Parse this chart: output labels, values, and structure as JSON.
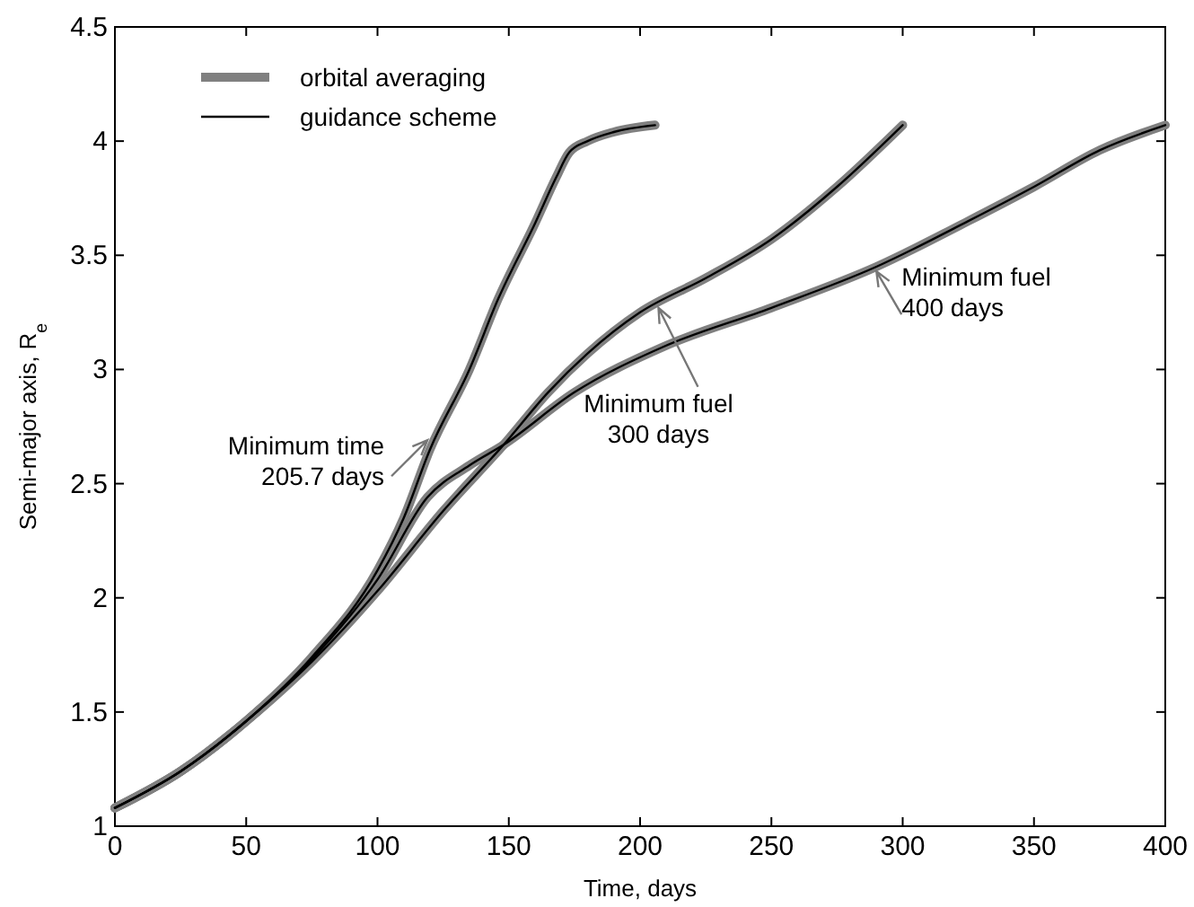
{
  "chart_data": {
    "type": "line",
    "xlabel": "Time, days",
    "ylabel": "Semi-major axis, R$_{e}$",
    "xlim": [
      0,
      400
    ],
    "ylim": [
      1,
      4.5
    ],
    "xticks": [
      0,
      50,
      100,
      150,
      200,
      250,
      300,
      350,
      400
    ],
    "yticks": [
      1,
      1.5,
      2,
      2.5,
      3,
      3.5,
      4,
      4.5
    ],
    "grid": false,
    "legend": "top left",
    "marker": "none",
    "line_style": "solid",
    "series": [
      {
        "name": "orbital averaging",
        "color": "#808080",
        "x": [
          0,
          25,
          50,
          75,
          100,
          110,
          120,
          135,
          146,
          160,
          168,
          173,
          180,
          190,
          205.7
        ],
        "values": [
          1.08,
          1.24,
          1.46,
          1.74,
          2.12,
          2.35,
          2.65,
          3.0,
          3.31,
          3.64,
          3.84,
          3.95,
          4.0,
          4.04,
          4.07
        ]
      },
      {
        "color": "#808080",
        "x": [
          0,
          25,
          50,
          75,
          100,
          125,
          148,
          165,
          180,
          200,
          225,
          250,
          275,
          300
        ],
        "values": [
          1.08,
          1.24,
          1.46,
          1.72,
          2.03,
          2.38,
          2.67,
          2.9,
          3.07,
          3.25,
          3.4,
          3.57,
          3.8,
          4.07
        ]
      },
      {
        "color": "#808080",
        "x": [
          0,
          25,
          50,
          75,
          100,
          119,
          135,
          148,
          175,
          209,
          250,
          290,
          325,
          350,
          375,
          400
        ],
        "values": [
          1.08,
          1.24,
          1.46,
          1.73,
          2.08,
          2.44,
          2.58,
          2.67,
          2.9,
          3.1,
          3.27,
          3.45,
          3.65,
          3.8,
          3.96,
          4.07
        ]
      },
      {
        "name": "guidance scheme",
        "color": "#000000",
        "x": [
          0,
          25,
          50,
          75,
          100,
          110,
          120,
          135,
          146,
          160,
          168,
          173,
          180,
          190,
          205.7
        ],
        "values": [
          1.08,
          1.24,
          1.46,
          1.74,
          2.12,
          2.35,
          2.65,
          3.0,
          3.31,
          3.64,
          3.84,
          3.95,
          4.0,
          4.04,
          4.07
        ]
      },
      {
        "color": "#000000",
        "x": [
          0,
          25,
          50,
          75,
          100,
          125,
          148,
          165,
          180,
          200,
          225,
          250,
          275,
          300
        ],
        "values": [
          1.08,
          1.24,
          1.46,
          1.72,
          2.03,
          2.38,
          2.67,
          2.9,
          3.07,
          3.25,
          3.4,
          3.57,
          3.8,
          4.07
        ]
      },
      {
        "color": "#000000",
        "x": [
          0,
          25,
          50,
          75,
          100,
          119,
          135,
          148,
          175,
          209,
          250,
          290,
          325,
          350,
          375,
          400
        ],
        "values": [
          1.08,
          1.24,
          1.46,
          1.73,
          2.08,
          2.44,
          2.58,
          2.67,
          2.9,
          3.1,
          3.27,
          3.45,
          3.65,
          3.8,
          3.96,
          4.07
        ]
      }
    ],
    "annotations": [
      {
        "text": "Minimum time\n205.7 days",
        "x": 119,
        "y": 2.69
      },
      {
        "text": "Minimum fuel\n300 days",
        "x": 207,
        "y": 3.27
      },
      {
        "text": "Minimum fuel\n400 days",
        "x": 290,
        "y": 3.43
      }
    ]
  }
}
